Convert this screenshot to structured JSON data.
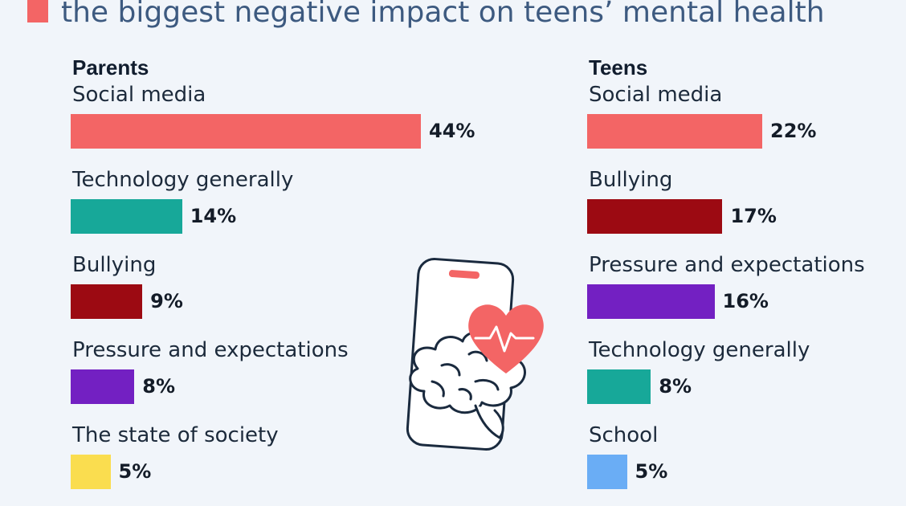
{
  "header": {
    "title": "the biggest negative impact on teens’ mental health",
    "marker_color": "#f36565"
  },
  "illustration": {
    "icons": [
      "smartphone-icon",
      "heart-icon",
      "heartbeat-line-icon",
      "brain-icon"
    ],
    "colors": {
      "heart": "#f36565",
      "outline": "#1a2a3e",
      "fill": "#ffffff"
    }
  },
  "chart_data": [
    {
      "type": "bar",
      "orientation": "horizontal",
      "title": "Parents",
      "categories": [
        "Social media",
        "Technology generally",
        "Bullying",
        "Pressure and expectations",
        "The state of society"
      ],
      "values": [
        44,
        14,
        9,
        8,
        5
      ],
      "value_labels": [
        "44%",
        "14%",
        "9%",
        "8%",
        "5%"
      ],
      "colors": [
        "#f36565",
        "#17a899",
        "#9c0a12",
        "#7320c2",
        "#fadd4f"
      ],
      "xlim": [
        0,
        44
      ],
      "grid": false
    },
    {
      "type": "bar",
      "orientation": "horizontal",
      "title": "Teens",
      "categories": [
        "Social media",
        "Bullying",
        "Pressure and expectations",
        "Technology generally",
        "School"
      ],
      "values": [
        22,
        17,
        16,
        8,
        5
      ],
      "value_labels": [
        "22%",
        "17%",
        "16%",
        "8%",
        "5%"
      ],
      "colors": [
        "#f36565",
        "#9c0a12",
        "#7320c2",
        "#17a899",
        "#6aadf5"
      ],
      "xlim": [
        0,
        44
      ],
      "grid": false
    }
  ]
}
